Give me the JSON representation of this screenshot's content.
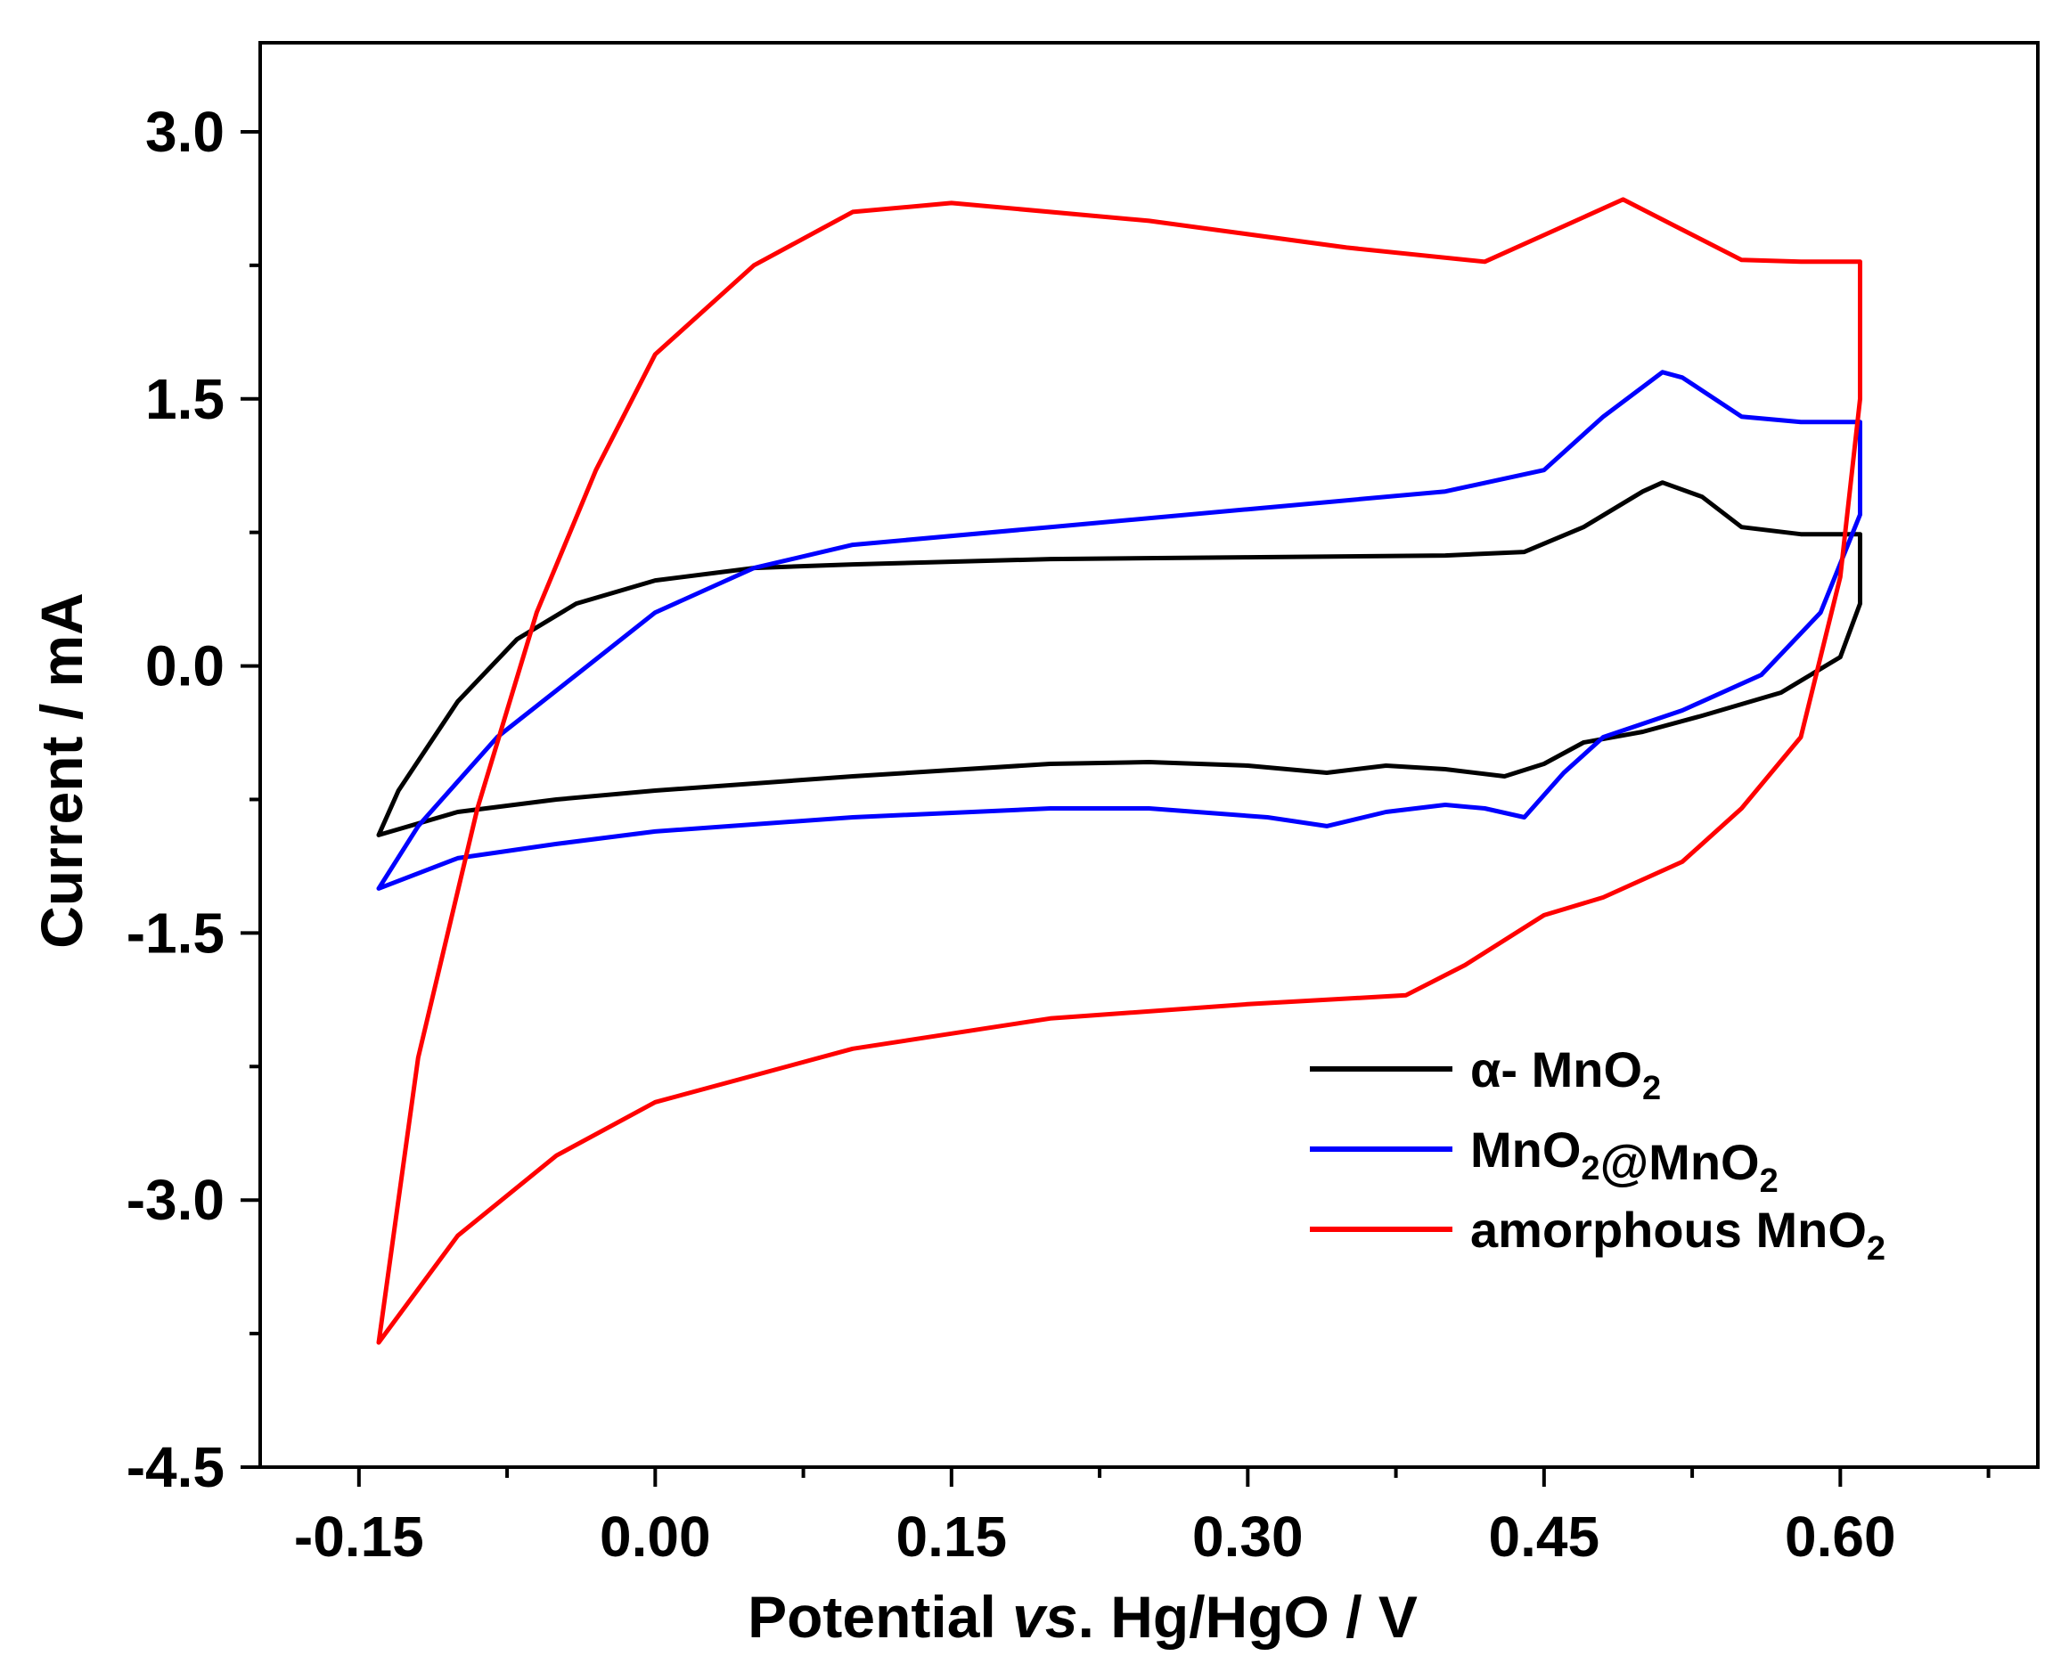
{
  "chart_data": {
    "type": "line",
    "title": "",
    "xlabel": "Potential vs. Hg/HgO / V",
    "ylabel": "Current / mA",
    "xlim": [
      -0.2,
      0.7
    ],
    "ylim": [
      -4.5,
      3.5
    ],
    "xticks": [
      -0.15,
      0.0,
      0.15,
      0.3,
      0.45,
      0.6
    ],
    "xtick_labels": [
      "-0.15",
      "0.00",
      "0.15",
      "0.30",
      "0.45",
      "0.60"
    ],
    "yticks": [
      -4.5,
      -3.0,
      -1.5,
      0.0,
      1.5,
      3.0
    ],
    "ytick_labels": [
      "-4.5",
      "-3.0",
      "-1.5",
      "0.0",
      "1.5",
      "3.0"
    ],
    "grid": false,
    "legend_position": "bottom-right",
    "series": [
      {
        "name": "α- MnO2",
        "color": "#000000",
        "x": [
          -0.14,
          -0.13,
          -0.1,
          -0.07,
          -0.04,
          0.0,
          0.05,
          0.1,
          0.2,
          0.3,
          0.4,
          0.44,
          0.47,
          0.5,
          0.51,
          0.53,
          0.55,
          0.58,
          0.61,
          0.61,
          0.6,
          0.57,
          0.53,
          0.5,
          0.47,
          0.45,
          0.43,
          0.4,
          0.37,
          0.34,
          0.3,
          0.25,
          0.2,
          0.1,
          0.0,
          -0.05,
          -0.1,
          -0.14
        ],
        "y": [
          -0.95,
          -0.7,
          -0.2,
          0.15,
          0.35,
          0.48,
          0.55,
          0.57,
          0.6,
          0.61,
          0.62,
          0.64,
          0.78,
          0.98,
          1.03,
          0.95,
          0.78,
          0.74,
          0.74,
          0.35,
          0.05,
          -0.15,
          -0.28,
          -0.37,
          -0.43,
          -0.55,
          -0.62,
          -0.58,
          -0.56,
          -0.6,
          -0.56,
          -0.54,
          -0.55,
          -0.62,
          -0.7,
          -0.75,
          -0.82,
          -0.95
        ]
      },
      {
        "name": "MnO2@MnO2",
        "color": "#0000ff",
        "x": [
          -0.14,
          -0.12,
          -0.08,
          -0.04,
          0.0,
          0.05,
          0.1,
          0.2,
          0.3,
          0.4,
          0.45,
          0.48,
          0.51,
          0.52,
          0.55,
          0.58,
          0.61,
          0.61,
          0.59,
          0.56,
          0.52,
          0.48,
          0.46,
          0.44,
          0.42,
          0.4,
          0.37,
          0.34,
          0.31,
          0.25,
          0.2,
          0.1,
          0.0,
          -0.05,
          -0.1,
          -0.14
        ],
        "y": [
          -1.25,
          -0.9,
          -0.4,
          -0.05,
          0.3,
          0.55,
          0.68,
          0.78,
          0.88,
          0.98,
          1.1,
          1.4,
          1.65,
          1.62,
          1.4,
          1.37,
          1.37,
          0.85,
          0.3,
          -0.05,
          -0.25,
          -0.4,
          -0.6,
          -0.85,
          -0.8,
          -0.78,
          -0.82,
          -0.9,
          -0.85,
          -0.8,
          -0.8,
          -0.85,
          -0.93,
          -1.0,
          -1.08,
          -1.25
        ]
      },
      {
        "name": "amorphous MnO2",
        "color": "#ff0000",
        "x": [
          -0.14,
          -0.12,
          -0.09,
          -0.06,
          -0.03,
          0.0,
          0.05,
          0.1,
          0.15,
          0.25,
          0.35,
          0.42,
          0.45,
          0.49,
          0.52,
          0.55,
          0.58,
          0.61,
          0.61,
          0.6,
          0.58,
          0.55,
          0.52,
          0.48,
          0.45,
          0.41,
          0.38,
          0.3,
          0.2,
          0.1,
          0.0,
          -0.05,
          -0.1,
          -0.14
        ],
        "y": [
          -3.8,
          -2.2,
          -0.8,
          0.3,
          1.1,
          1.75,
          2.25,
          2.55,
          2.6,
          2.5,
          2.35,
          2.27,
          2.42,
          2.62,
          2.45,
          2.28,
          2.27,
          2.27,
          1.5,
          0.5,
          -0.4,
          -0.8,
          -1.1,
          -1.3,
          -1.4,
          -1.68,
          -1.85,
          -1.9,
          -1.98,
          -2.15,
          -2.45,
          -2.75,
          -3.2,
          -3.8
        ]
      }
    ]
  }
}
